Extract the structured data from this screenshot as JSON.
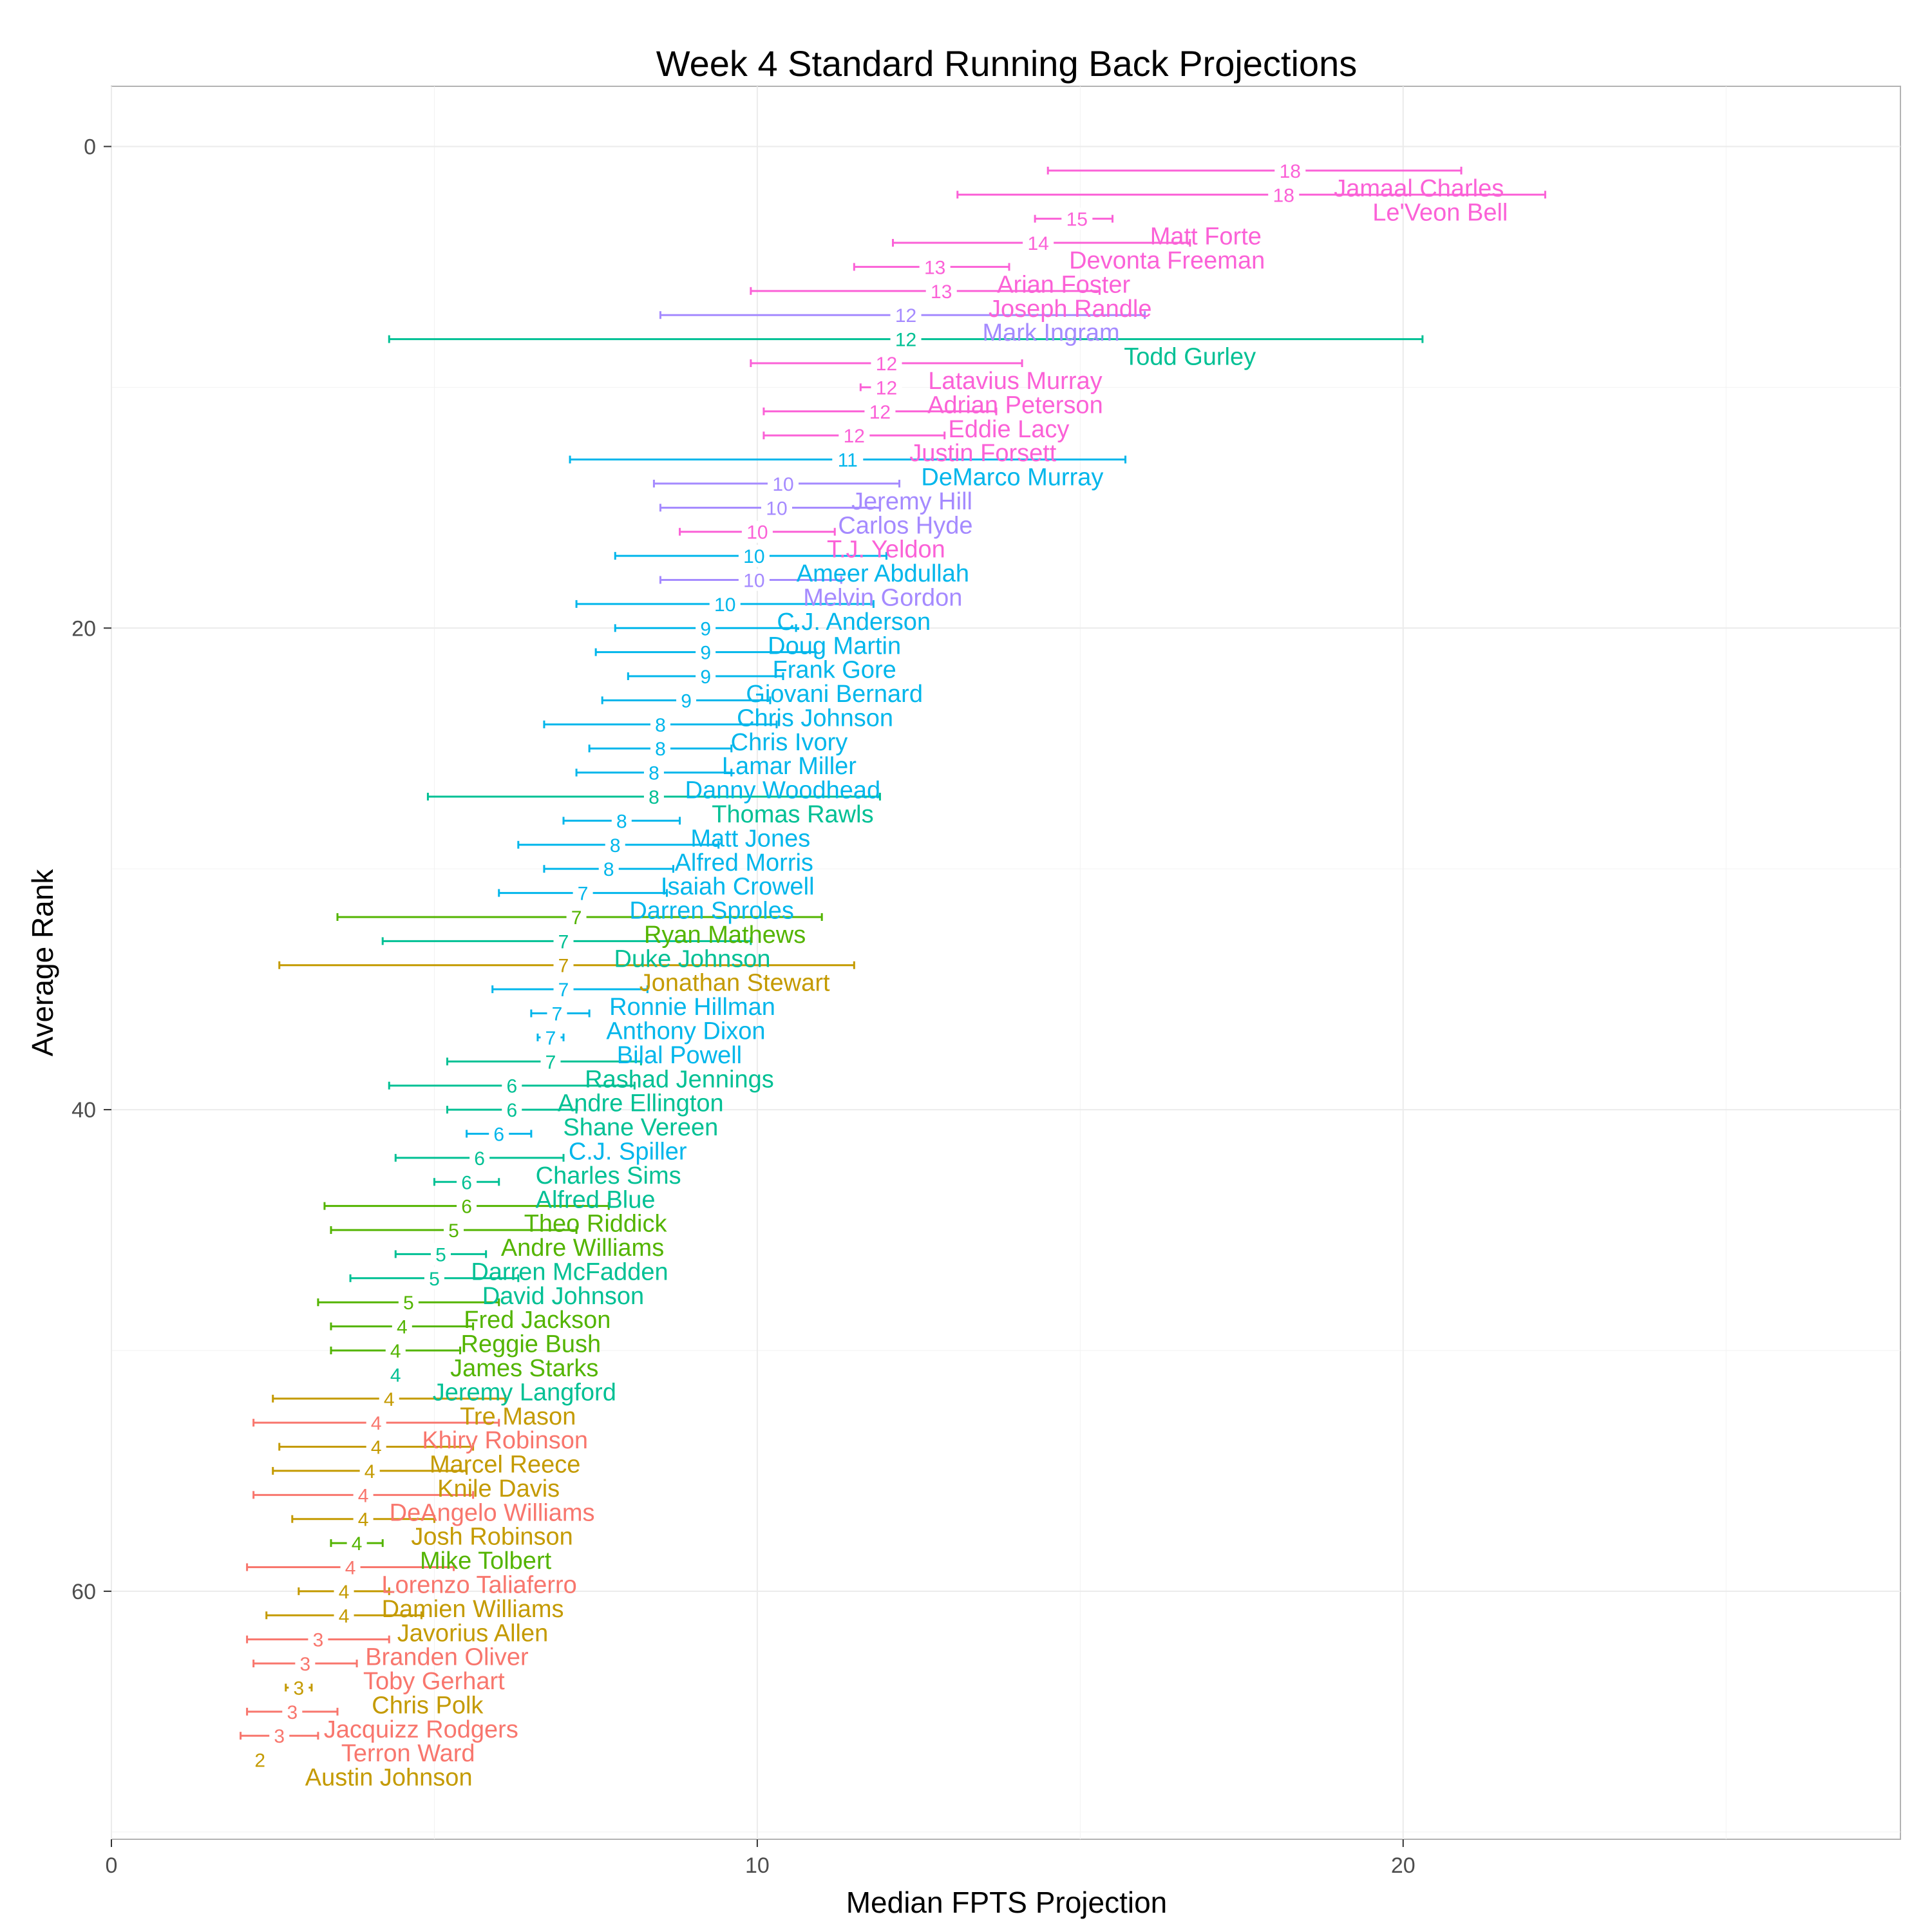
{
  "chart_data": {
    "type": "errorbar",
    "title": "Week 4 Standard Running Back Projections",
    "xlabel": "Median FPTS Projection",
    "ylabel": "Average Rank",
    "xlim": [
      0,
      27.7
    ],
    "ylim": [
      -2.5,
      70.3
    ],
    "y_reversed": true,
    "xticks": [
      0,
      10,
      20
    ],
    "yticks": [
      0,
      20,
      40,
      60
    ],
    "grid": true,
    "legend": "none",
    "tier_colors": {
      "2": "#F8766D",
      "3": "#C49A00",
      "4": "#53B400",
      "5": "#00C094",
      "6": "#00B6EB",
      "7": "#A58AFF",
      "8": "#FB61D7"
    },
    "points": [
      {
        "name": "Jamaal Charles",
        "rank": 1,
        "median": 18.25,
        "low": 14.5,
        "high": 20.9,
        "label": "18",
        "tier": 8
      },
      {
        "name": "Le'Veon Bell",
        "rank": 2,
        "median": 18.15,
        "low": 13.1,
        "high": 22.2,
        "label": "18",
        "tier": 8
      },
      {
        "name": "Matt Forte",
        "rank": 3,
        "median": 14.95,
        "low": 14.3,
        "high": 15.5,
        "label": "15",
        "tier": 8
      },
      {
        "name": "Devonta Freeman",
        "rank": 4,
        "median": 14.35,
        "low": 12.1,
        "high": 16.7,
        "label": "14",
        "tier": 8
      },
      {
        "name": "Arian Foster",
        "rank": 5,
        "median": 12.75,
        "low": 11.5,
        "high": 13.9,
        "label": "13",
        "tier": 8
      },
      {
        "name": "Joseph Randle",
        "rank": 6,
        "median": 12.85,
        "low": 9.9,
        "high": 15.3,
        "label": "13",
        "tier": 8
      },
      {
        "name": "Mark Ingram",
        "rank": 7,
        "median": 12.3,
        "low": 8.5,
        "high": 16.0,
        "label": "12",
        "tier": 7
      },
      {
        "name": "Todd Gurley",
        "rank": 8,
        "median": 12.3,
        "low": 4.3,
        "high": 20.3,
        "label": "12",
        "tier": 5
      },
      {
        "name": "Latavius Murray",
        "rank": 9,
        "median": 12.0,
        "low": 9.9,
        "high": 14.1,
        "label": "12",
        "tier": 8
      },
      {
        "name": "Adrian Peterson",
        "rank": 10,
        "median": 12.0,
        "low": 11.6,
        "high": 12.2,
        "label": "12",
        "tier": 8
      },
      {
        "name": "Eddie Lacy",
        "rank": 11,
        "median": 11.9,
        "low": 10.1,
        "high": 13.7,
        "label": "12",
        "tier": 8
      },
      {
        "name": "Justin Forsett",
        "rank": 12,
        "median": 11.5,
        "low": 10.1,
        "high": 12.9,
        "label": "12",
        "tier": 8
      },
      {
        "name": "DeMarco Murray",
        "rank": 13,
        "median": 11.4,
        "low": 7.1,
        "high": 15.7,
        "label": "11",
        "tier": 6
      },
      {
        "name": "Jeremy Hill",
        "rank": 14,
        "median": 10.4,
        "low": 8.4,
        "high": 12.2,
        "label": "10",
        "tier": 7
      },
      {
        "name": "Carlos Hyde",
        "rank": 15,
        "median": 10.3,
        "low": 8.5,
        "high": 11.9,
        "label": "10",
        "tier": 7
      },
      {
        "name": "T.J. Yeldon",
        "rank": 16,
        "median": 10.0,
        "low": 8.8,
        "high": 11.2,
        "label": "10",
        "tier": 8
      },
      {
        "name": "Ameer Abdullah",
        "rank": 17,
        "median": 9.95,
        "low": 7.8,
        "high": 12.0,
        "label": "10",
        "tier": 6
      },
      {
        "name": "Melvin Gordon",
        "rank": 18,
        "median": 9.95,
        "low": 8.5,
        "high": 11.3,
        "label": "10",
        "tier": 7
      },
      {
        "name": "C.J. Anderson",
        "rank": 19,
        "median": 9.5,
        "low": 7.2,
        "high": 11.8,
        "label": "10",
        "tier": 6
      },
      {
        "name": "Doug Martin",
        "rank": 20,
        "median": 9.2,
        "low": 7.8,
        "high": 10.6,
        "label": "9",
        "tier": 6
      },
      {
        "name": "Frank Gore",
        "rank": 21,
        "median": 9.2,
        "low": 7.5,
        "high": 10.9,
        "label": "9",
        "tier": 6
      },
      {
        "name": "Giovani Bernard",
        "rank": 22,
        "median": 9.2,
        "low": 8.0,
        "high": 10.4,
        "label": "9",
        "tier": 6
      },
      {
        "name": "Chris Johnson",
        "rank": 23,
        "median": 8.9,
        "low": 7.6,
        "high": 10.2,
        "label": "9",
        "tier": 6
      },
      {
        "name": "Chris Ivory",
        "rank": 24,
        "median": 8.5,
        "low": 6.7,
        "high": 10.3,
        "label": "8",
        "tier": 6
      },
      {
        "name": "Lamar Miller",
        "rank": 25,
        "median": 8.5,
        "low": 7.4,
        "high": 9.6,
        "label": "8",
        "tier": 6
      },
      {
        "name": "Danny Woodhead",
        "rank": 26,
        "median": 8.4,
        "low": 7.2,
        "high": 9.6,
        "label": "8",
        "tier": 6
      },
      {
        "name": "Thomas Rawls",
        "rank": 27,
        "median": 8.4,
        "low": 4.9,
        "high": 11.9,
        "label": "8",
        "tier": 5
      },
      {
        "name": "Matt Jones",
        "rank": 28,
        "median": 7.9,
        "low": 7.0,
        "high": 8.8,
        "label": "8",
        "tier": 6
      },
      {
        "name": "Alfred Morris",
        "rank": 29,
        "median": 7.8,
        "low": 6.3,
        "high": 9.4,
        "label": "8",
        "tier": 6
      },
      {
        "name": "Isaiah Crowell",
        "rank": 30,
        "median": 7.7,
        "low": 6.7,
        "high": 8.7,
        "label": "8",
        "tier": 6
      },
      {
        "name": "Darren Sproles",
        "rank": 31,
        "median": 7.3,
        "low": 6.0,
        "high": 8.6,
        "label": "7",
        "tier": 6
      },
      {
        "name": "Ryan Mathews",
        "rank": 32,
        "median": 7.2,
        "low": 3.5,
        "high": 11.0,
        "label": "7",
        "tier": 4
      },
      {
        "name": "Duke Johnson",
        "rank": 33,
        "median": 7.0,
        "low": 4.2,
        "high": 9.9,
        "label": "7",
        "tier": 5
      },
      {
        "name": "Jonathan Stewart",
        "rank": 34,
        "median": 7.0,
        "low": 2.6,
        "high": 11.5,
        "label": "7",
        "tier": 3
      },
      {
        "name": "Ronnie Hillman",
        "rank": 35,
        "median": 7.0,
        "low": 5.9,
        "high": 8.3,
        "label": "7",
        "tier": 6
      },
      {
        "name": "Anthony Dixon",
        "rank": 36,
        "median": 6.9,
        "low": 6.5,
        "high": 7.4,
        "label": "7",
        "tier": 6
      },
      {
        "name": "Bilal Powell",
        "rank": 37,
        "median": 6.8,
        "low": 6.6,
        "high": 7.0,
        "label": "7",
        "tier": 6
      },
      {
        "name": "Rashad Jennings",
        "rank": 38,
        "median": 6.8,
        "low": 5.2,
        "high": 8.2,
        "label": "7",
        "tier": 5
      },
      {
        "name": "Andre Ellington",
        "rank": 39,
        "median": 6.2,
        "low": 4.3,
        "high": 8.1,
        "label": "6",
        "tier": 5
      },
      {
        "name": "Shane Vereen",
        "rank": 40,
        "median": 6.2,
        "low": 5.2,
        "high": 7.2,
        "label": "6",
        "tier": 5
      },
      {
        "name": "C.J. Spiller",
        "rank": 41,
        "median": 6.0,
        "low": 5.5,
        "high": 6.5,
        "label": "6",
        "tier": 6
      },
      {
        "name": "Charles Sims",
        "rank": 42,
        "median": 5.7,
        "low": 4.4,
        "high": 7.0,
        "label": "6",
        "tier": 5
      },
      {
        "name": "Alfred Blue",
        "rank": 43,
        "median": 5.5,
        "low": 5.0,
        "high": 6.0,
        "label": "6",
        "tier": 5
      },
      {
        "name": "Theo Riddick",
        "rank": 44,
        "median": 5.5,
        "low": 3.3,
        "high": 7.7,
        "label": "6",
        "tier": 4
      },
      {
        "name": "Andre Williams",
        "rank": 45,
        "median": 5.3,
        "low": 3.4,
        "high": 7.2,
        "label": "5",
        "tier": 4
      },
      {
        "name": "Darren McFadden",
        "rank": 46,
        "median": 5.1,
        "low": 4.4,
        "high": 5.8,
        "label": "5",
        "tier": 5
      },
      {
        "name": "David Johnson",
        "rank": 47,
        "median": 5.0,
        "low": 3.7,
        "high": 6.3,
        "label": "5",
        "tier": 5
      },
      {
        "name": "Fred Jackson",
        "rank": 48,
        "median": 4.6,
        "low": 3.2,
        "high": 6.0,
        "label": "5",
        "tier": 4
      },
      {
        "name": "Reggie Bush",
        "rank": 49,
        "median": 4.5,
        "low": 3.4,
        "high": 5.6,
        "label": "4",
        "tier": 4
      },
      {
        "name": "James Starks",
        "rank": 50,
        "median": 4.4,
        "low": 3.4,
        "high": 5.4,
        "label": "4",
        "tier": 4
      },
      {
        "name": "Jeremy Langford",
        "rank": 51,
        "median": 4.4,
        "low": 4.4,
        "high": 4.4,
        "label": "4",
        "tier": 5
      },
      {
        "name": "Tre Mason",
        "rank": 52,
        "median": 4.3,
        "low": 2.5,
        "high": 6.1,
        "label": "4",
        "tier": 3
      },
      {
        "name": "Khiry Robinson",
        "rank": 53,
        "median": 4.1,
        "low": 2.2,
        "high": 6.0,
        "label": "4",
        "tier": 2
      },
      {
        "name": "Marcel Reece",
        "rank": 54,
        "median": 4.1,
        "low": 2.6,
        "high": 5.6,
        "label": "4",
        "tier": 3
      },
      {
        "name": "Knile Davis",
        "rank": 55,
        "median": 4.0,
        "low": 2.5,
        "high": 5.5,
        "label": "4",
        "tier": 3
      },
      {
        "name": "DeAngelo Williams",
        "rank": 56,
        "median": 3.9,
        "low": 2.2,
        "high": 5.6,
        "label": "4",
        "tier": 2
      },
      {
        "name": "Josh Robinson",
        "rank": 57,
        "median": 3.9,
        "low": 2.8,
        "high": 5.0,
        "label": "4",
        "tier": 3
      },
      {
        "name": "Mike Tolbert",
        "rank": 58,
        "median": 3.8,
        "low": 3.4,
        "high": 4.2,
        "label": "4",
        "tier": 4
      },
      {
        "name": "Lorenzo Taliaferro",
        "rank": 59,
        "median": 3.7,
        "low": 2.1,
        "high": 5.3,
        "label": "4",
        "tier": 2
      },
      {
        "name": "Damien Williams",
        "rank": 60,
        "median": 3.6,
        "low": 2.9,
        "high": 4.3,
        "label": "4",
        "tier": 3
      },
      {
        "name": "Javorius Allen",
        "rank": 61,
        "median": 3.6,
        "low": 2.4,
        "high": 4.8,
        "label": "4",
        "tier": 3
      },
      {
        "name": "Branden Oliver",
        "rank": 62,
        "median": 3.2,
        "low": 2.1,
        "high": 4.3,
        "label": "3",
        "tier": 2
      },
      {
        "name": "Toby Gerhart",
        "rank": 63,
        "median": 3.0,
        "low": 2.2,
        "high": 3.8,
        "label": "3",
        "tier": 2
      },
      {
        "name": "Chris Polk",
        "rank": 64,
        "median": 2.9,
        "low": 2.7,
        "high": 3.1,
        "label": "3",
        "tier": 3
      },
      {
        "name": "Jacquizz Rodgers",
        "rank": 65,
        "median": 2.8,
        "low": 2.1,
        "high": 3.5,
        "label": "3",
        "tier": 2
      },
      {
        "name": "Terron Ward",
        "rank": 66,
        "median": 2.6,
        "low": 2.0,
        "high": 3.2,
        "label": "3",
        "tier": 2
      },
      {
        "name": "Austin Johnson",
        "rank": 67,
        "median": 2.3,
        "low": 2.3,
        "high": 2.3,
        "label": "2",
        "tier": 3
      }
    ]
  }
}
